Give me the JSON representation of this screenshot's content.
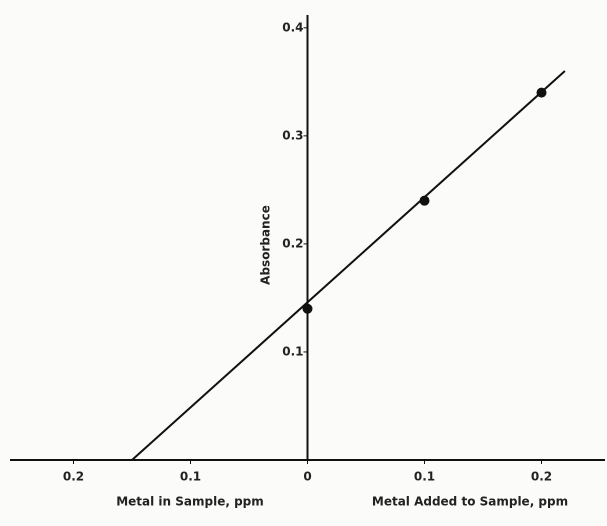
{
  "chart_data": {
    "type": "scatter",
    "xlabel_left": "Metal in Sample, ppm",
    "xlabel_right": "Metal Added to Sample, ppm",
    "ylabel": "Absorbance",
    "points": {
      "x": [
        0,
        0.1,
        0.2
      ],
      "y": [
        0.14,
        0.24,
        0.34
      ],
      "color": "#111111"
    },
    "fit_line": {
      "x": [
        -0.15,
        0.22
      ],
      "y": [
        0,
        0.36
      ],
      "color": "#111111"
    },
    "xlim": [
      -0.25,
      0.25
    ],
    "ylim": [
      0,
      0.41
    ],
    "xticks": [
      {
        "value": -0.2,
        "label": "0.2"
      },
      {
        "value": -0.1,
        "label": "0.1"
      },
      0,
      0.1,
      0.2
    ],
    "yticks": [
      0.1,
      0.2,
      0.3,
      0.4
    ],
    "grid": false
  }
}
